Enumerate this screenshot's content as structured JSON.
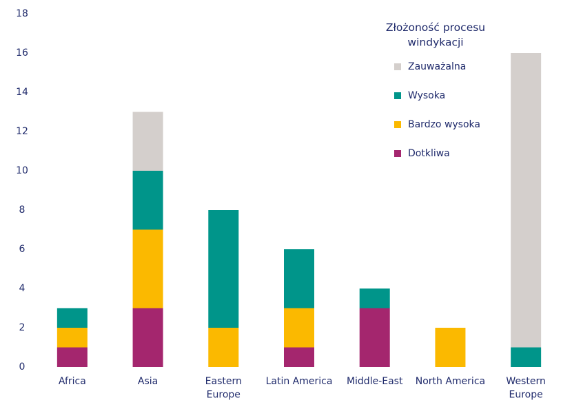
{
  "chart_data": {
    "type": "stacked_bar",
    "categories": [
      "Africa",
      "Asia",
      "Eastern Europe",
      "Latin America",
      "Middle-East",
      "North America",
      "Western Europe"
    ],
    "series": [
      {
        "name": "Dotkliwa",
        "color": "#a4266e",
        "values": [
          1,
          3,
          0,
          1,
          3,
          0,
          0
        ]
      },
      {
        "name": "Bardzo wysoka",
        "color": "#fbb900",
        "values": [
          1,
          4,
          2,
          2,
          0,
          2,
          0
        ]
      },
      {
        "name": "Wysoka",
        "color": "#00958a",
        "values": [
          1,
          3,
          6,
          3,
          1,
          0,
          1
        ]
      },
      {
        "name": "Zauważalna",
        "color": "#d4cfcc",
        "values": [
          0,
          3,
          0,
          0,
          0,
          0,
          15
        ]
      }
    ],
    "legend_title": "Złożoność procesu windykacji",
    "ylim": [
      0,
      18
    ],
    "yticks": [
      0,
      2,
      4,
      6,
      8,
      10,
      12,
      14,
      16,
      18
    ],
    "grid": false
  }
}
